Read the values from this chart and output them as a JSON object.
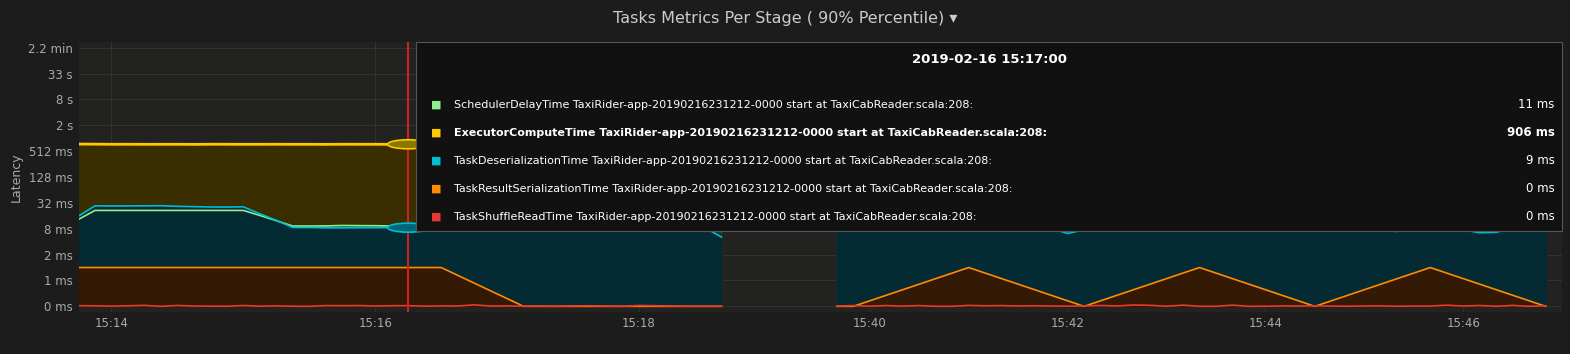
{
  "title": "Tasks Metrics Per Stage ( 90% Percentile) ▾",
  "ylabel": "Latency",
  "bg_color": "#1c1c1c",
  "plot_bg_color": "#222220",
  "grid_color": "#3a3a38",
  "title_color": "#cccccc",
  "axis_label_color": "#aaaaaa",
  "tick_color": "#aaaaaa",
  "ytick_labels": [
    "0 ms",
    "1 ms",
    "2 ms",
    "8 ms",
    "32 ms",
    "128 ms",
    "512 ms",
    "2 s",
    "8 s",
    "33 s",
    "2.2 min"
  ],
  "ytick_values": [
    0,
    1,
    2,
    8,
    32,
    128,
    512,
    2000,
    8000,
    33000,
    132000
  ],
  "xtick_labels": [
    "15:14",
    "15:16",
    "15:18",
    "15:40",
    "15:42",
    "15:44",
    "15:46"
  ],
  "tooltip_time": "2019-02-16 15:17:00",
  "tooltip_bg": "#111111",
  "tooltip_border": "#555555",
  "red_line_color": "#cc2222",
  "lines": [
    {
      "label": "SchedulerDelayTime TaxiRider-app-20190216231212-0000 start at TaxiCabReader.scala:208:",
      "value_label": "11 ms",
      "color": "#90ee90",
      "bold": false,
      "fill_color": "#1e3a20"
    },
    {
      "label": "ExecutorComputeTime TaxiRider-app-20190216231212-0000 start at TaxiCabReader.scala:208:",
      "value_label": "906 ms",
      "color": "#ffc800",
      "bold": true,
      "fill_color": "#3a3000"
    },
    {
      "label": "TaskDeserializationTime TaxiRider-app-20190216231212-0000 start at TaxiCabReader.scala:208:",
      "value_label": "9 ms",
      "color": "#00bcd4",
      "bold": false,
      "fill_color": "#003040"
    },
    {
      "label": "TaskResultSerializationTime TaxiRider-app-20190216231212-0000 start at TaxiCabReader.scala:208:",
      "value_label": "0 ms",
      "color": "#ff8c00",
      "bold": false,
      "fill_color": "#2a1800"
    },
    {
      "label": "TaskShuffleReadTime TaxiRider-app-20190216231212-0000 start at TaxiCabReader.scala:208:",
      "value_label": "0 ms",
      "color": "#e53935",
      "bold": false,
      "fill_color": "#2a0a00"
    }
  ]
}
